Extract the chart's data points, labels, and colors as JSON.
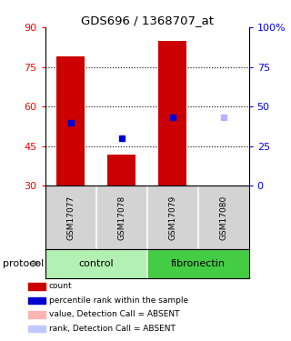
{
  "title": "GDS696 / 1368707_at",
  "samples": [
    "GSM17077",
    "GSM17078",
    "GSM17079",
    "GSM17080"
  ],
  "bar_bottoms": [
    30,
    30,
    30,
    30
  ],
  "bar_tops": [
    79,
    42,
    85,
    30
  ],
  "bar_colors": [
    "#cc0000",
    "#cc0000",
    "#cc0000",
    "#ffb3b3"
  ],
  "blue_marks": [
    54,
    48,
    56,
    56
  ],
  "blue_mark_colors": [
    "#0000cc",
    "#0000cc",
    "#0000cc",
    "#b3b3ff"
  ],
  "ylim_left": [
    30,
    90
  ],
  "ylim_right": [
    0,
    100
  ],
  "yticks_left": [
    30,
    45,
    60,
    75,
    90
  ],
  "yticks_right": [
    0,
    25,
    50,
    75,
    100
  ],
  "ytick_labels_right": [
    "0",
    "25",
    "50",
    "75",
    "100%"
  ],
  "control_color_light": "#b3f0b3",
  "control_color": "#b3f0b3",
  "fibronectin_color": "#44cc44",
  "group_label": "protocol",
  "bg_color": "#ffffff",
  "legend_items": [
    {
      "label": "count",
      "color": "#cc0000"
    },
    {
      "label": "percentile rank within the sample",
      "color": "#0000cc"
    },
    {
      "label": "value, Detection Call = ABSENT",
      "color": "#ffb3b3"
    },
    {
      "label": "rank, Detection Call = ABSENT",
      "color": "#c0c8ff"
    }
  ]
}
